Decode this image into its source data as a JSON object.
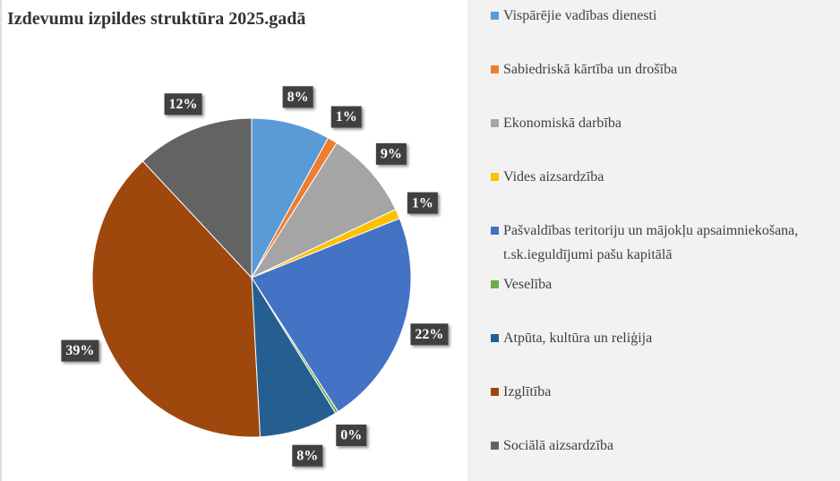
{
  "chart_data": {
    "type": "pie",
    "title": "Izdevumu izpildes struktūra 2025.gadā",
    "categories": [
      "Vispārējie vadības dienesti",
      "Sabiedriskā kārtība un drošība",
      "Ekonomiskā darbība",
      "Vides aizsardzība",
      "Pašvaldības teritoriju un mājokļu apsaimniekošana, t.sk.ieguldījumi pašu kapitālā",
      "Veselība",
      "Atpūta, kultūra un reliģija",
      "Izglītība",
      "Sociālā aizsardzība"
    ],
    "values": [
      8,
      1,
      9,
      1,
      22,
      0.3,
      8,
      39,
      12
    ],
    "value_labels": [
      "8%",
      "1%",
      "9%",
      "1%",
      "22%",
      "0%",
      "8%",
      "39%",
      "12%"
    ],
    "colors": [
      "#5b9bd5",
      "#ed7d31",
      "#a5a5a5",
      "#ffc000",
      "#4472c4",
      "#70ad47",
      "#255e91",
      "#9e480e",
      "#636363"
    ],
    "legend": "right"
  }
}
